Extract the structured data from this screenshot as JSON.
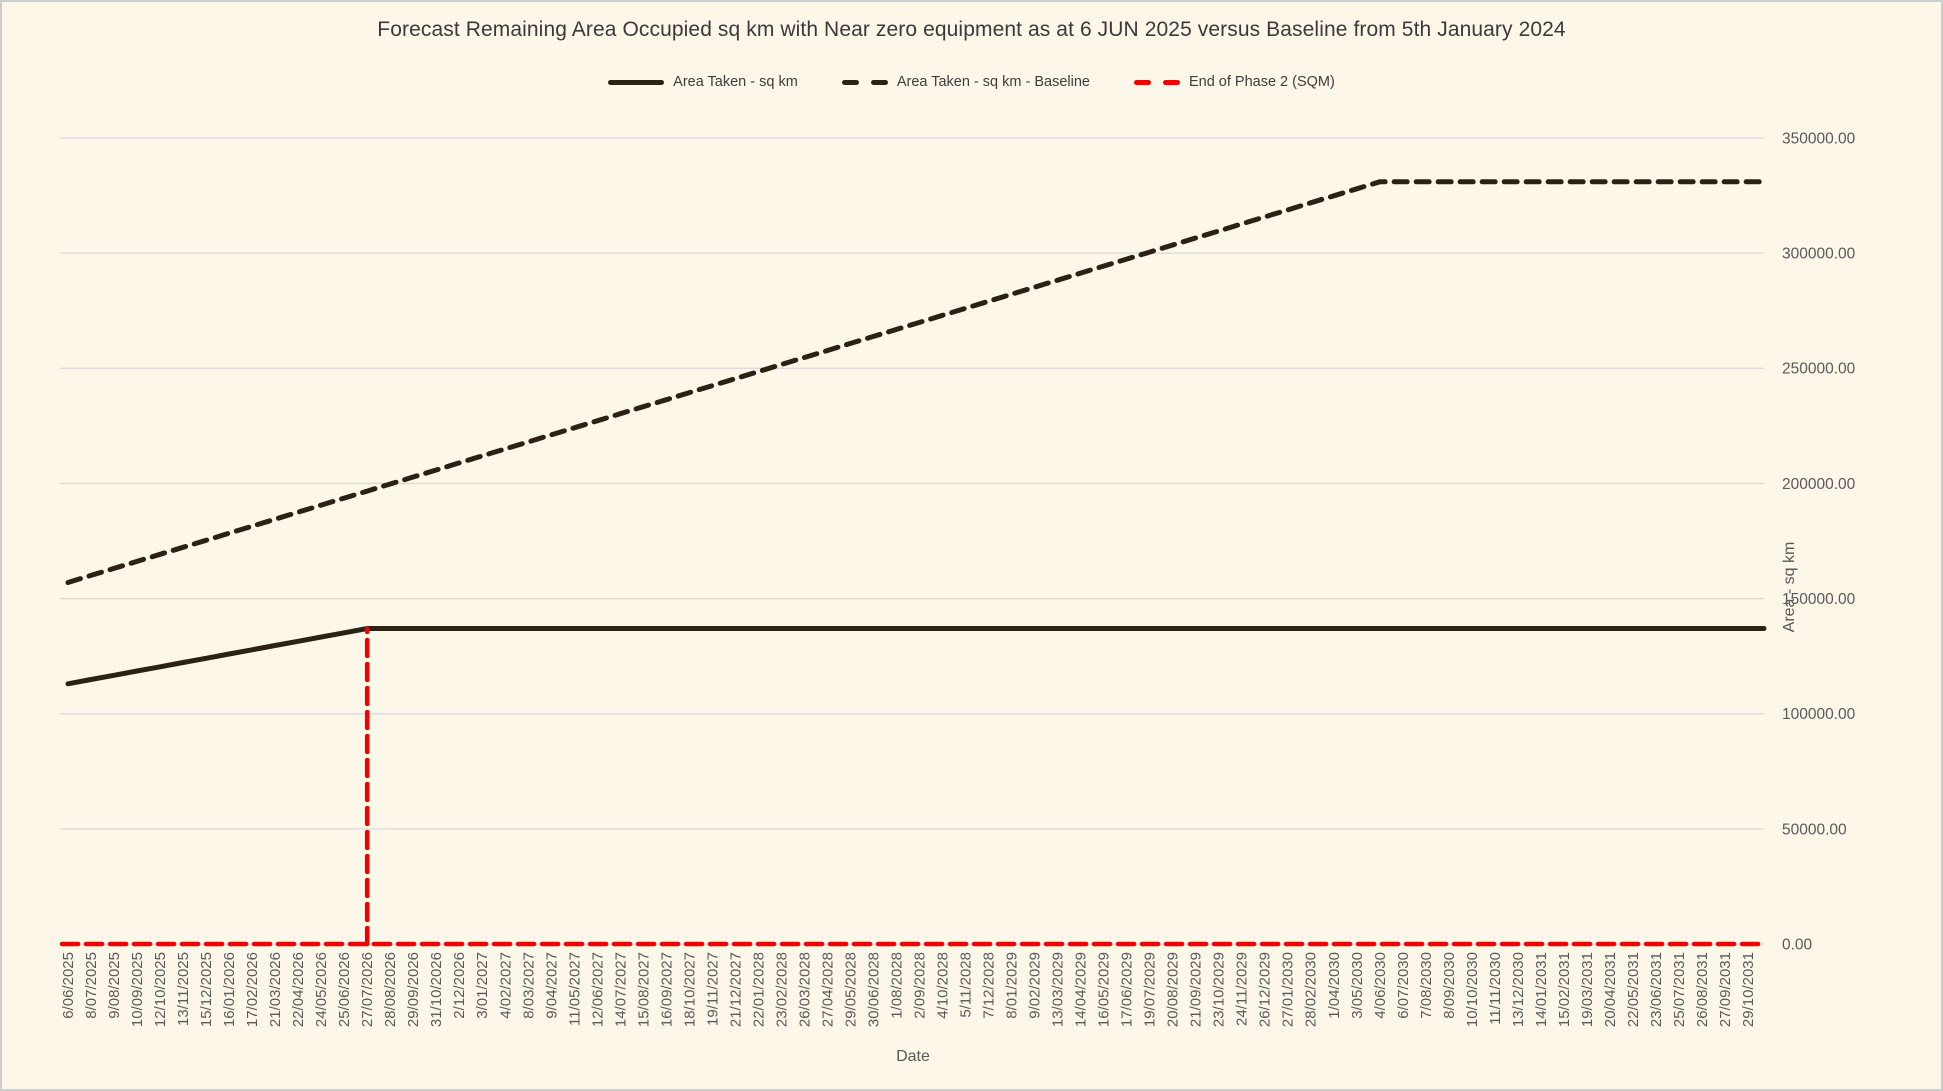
{
  "window": {
    "background": "#fdf7ea",
    "border_color": "#cdcdcd"
  },
  "title": "Forecast Remaining Area Occupied sq km with Near zero equipment as at 6 JUN 2025 versus Baseline from 5th January 2024",
  "legend": {
    "items": [
      {
        "label": "Area Taken - sq km",
        "style": "solid",
        "color": "#2b2213"
      },
      {
        "label": "Area Taken - sq km - Baseline",
        "style": "dashed",
        "color": "#2b2213"
      },
      {
        "label": "End of Phase 2 (SQM)",
        "style": "dashed",
        "color": "#f20000"
      }
    ]
  },
  "axes": {
    "x_title": "Date",
    "y_title": "Area - sq km"
  },
  "colors": {
    "gridline": "#d9d9d9",
    "tick_text": "#595959"
  },
  "chart_data": {
    "type": "line",
    "title": "Forecast Remaining Area Occupied sq km with Near zero equipment as at 6 JUN 2025 versus Baseline from 5th January 2024",
    "xlabel": "Date",
    "ylabel": "Area - sq km",
    "ylim": [
      0,
      350000
    ],
    "grid": true,
    "legend_position": "top",
    "ytick_values": [
      0,
      50000,
      100000,
      150000,
      200000,
      250000,
      300000,
      350000
    ],
    "ytick_labels": [
      "0.00",
      "50000.00",
      "100000.00",
      "150000.00",
      "200000.00",
      "250000.00",
      "300000.00",
      "350000.00"
    ],
    "categories": [
      "6/06/2025",
      "8/07/2025",
      "9/08/2025",
      "10/09/2025",
      "12/10/2025",
      "13/11/2025",
      "15/12/2025",
      "16/01/2026",
      "17/02/2026",
      "21/03/2026",
      "22/04/2026",
      "24/05/2026",
      "25/06/2026",
      "27/07/2026",
      "28/08/2026",
      "29/09/2026",
      "31/10/2026",
      "2/12/2026",
      "3/01/2027",
      "4/02/2027",
      "8/03/2027",
      "9/04/2027",
      "11/05/2027",
      "12/06/2027",
      "14/07/2027",
      "15/08/2027",
      "16/09/2027",
      "18/10/2027",
      "19/11/2027",
      "21/12/2027",
      "22/01/2028",
      "23/02/2028",
      "26/03/2028",
      "27/04/2028",
      "29/05/2028",
      "30/06/2028",
      "1/08/2028",
      "2/09/2028",
      "4/10/2028",
      "5/11/2028",
      "7/12/2028",
      "8/01/2029",
      "9/02/2029",
      "13/03/2029",
      "14/04/2029",
      "16/05/2029",
      "17/06/2029",
      "19/07/2029",
      "20/08/2029",
      "21/09/2029",
      "23/10/2029",
      "24/11/2029",
      "26/12/2029",
      "27/01/2030",
      "28/02/2030",
      "1/04/2030",
      "3/05/2030",
      "4/06/2030",
      "6/07/2030",
      "7/08/2030",
      "8/09/2030",
      "10/10/2030",
      "11/11/2030",
      "13/12/2030",
      "14/01/2031",
      "15/02/2031",
      "19/03/2031",
      "20/04/2031",
      "22/05/2031",
      "23/06/2031",
      "25/07/2031",
      "26/08/2031",
      "27/09/2031",
      "29/10/2031"
    ],
    "series": [
      {
        "name": "Area Taken - sq km",
        "color": "#2b2213",
        "line_style": "solid",
        "stroke_width": 5,
        "values": [
          113000,
          114846,
          116692,
          118538,
          120385,
          122231,
          124077,
          125923,
          127769,
          129615,
          131462,
          133308,
          135154,
          137000,
          137000,
          137000,
          137000,
          137000,
          137000,
          137000,
          137000,
          137000,
          137000,
          137000,
          137000,
          137000,
          137000,
          137000,
          137000,
          137000,
          137000,
          137000,
          137000,
          137000,
          137000,
          137000,
          137000,
          137000,
          137000,
          137000,
          137000,
          137000,
          137000,
          137000,
          137000,
          137000,
          137000,
          137000,
          137000,
          137000,
          137000,
          137000,
          137000,
          137000,
          137000,
          137000,
          137000,
          137000,
          137000,
          137000,
          137000,
          137000,
          137000,
          137000,
          137000,
          137000,
          137000,
          137000,
          137000,
          137000,
          137000,
          137000,
          137000,
          137000
        ]
      },
      {
        "name": "Area Taken - sq km - Baseline",
        "color": "#2b2213",
        "line_style": "dashed",
        "dash": "13 9",
        "stroke_width": 5,
        "values": [
          157000,
          160053,
          163105,
          166158,
          169211,
          172263,
          175316,
          178368,
          181421,
          184474,
          187526,
          190579,
          193632,
          196684,
          199737,
          202789,
          205842,
          208895,
          211947,
          215000,
          218053,
          221105,
          224158,
          227211,
          230263,
          233316,
          236368,
          239421,
          242474,
          245526,
          248579,
          251632,
          254684,
          257737,
          260789,
          263842,
          266895,
          269947,
          273000,
          276053,
          279105,
          282158,
          285211,
          288263,
          291316,
          294368,
          297421,
          300474,
          303526,
          306579,
          309632,
          312684,
          315737,
          318789,
          321842,
          324895,
          327947,
          331000,
          331000,
          331000,
          331000,
          331000,
          331000,
          331000,
          331000,
          331000,
          331000,
          331000,
          331000,
          331000,
          331000,
          331000,
          331000,
          331000
        ]
      },
      {
        "name": "End of Phase 2 (SQM)",
        "color": "#f20000",
        "line_style": "dashed",
        "dash": "16 8",
        "stroke_width": 4.5,
        "render": "flat-with-vertical-spike",
        "base_value": 0,
        "spike_index": 13,
        "spike_value": 137000,
        "values": [
          0,
          0,
          0,
          0,
          0,
          0,
          0,
          0,
          0,
          0,
          0,
          0,
          0,
          137000,
          0,
          0,
          0,
          0,
          0,
          0,
          0,
          0,
          0,
          0,
          0,
          0,
          0,
          0,
          0,
          0,
          0,
          0,
          0,
          0,
          0,
          0,
          0,
          0,
          0,
          0,
          0,
          0,
          0,
          0,
          0,
          0,
          0,
          0,
          0,
          0,
          0,
          0,
          0,
          0,
          0,
          0,
          0,
          0,
          0,
          0,
          0,
          0,
          0,
          0,
          0,
          0,
          0,
          0,
          0,
          0,
          0,
          0,
          0,
          0
        ]
      }
    ]
  }
}
